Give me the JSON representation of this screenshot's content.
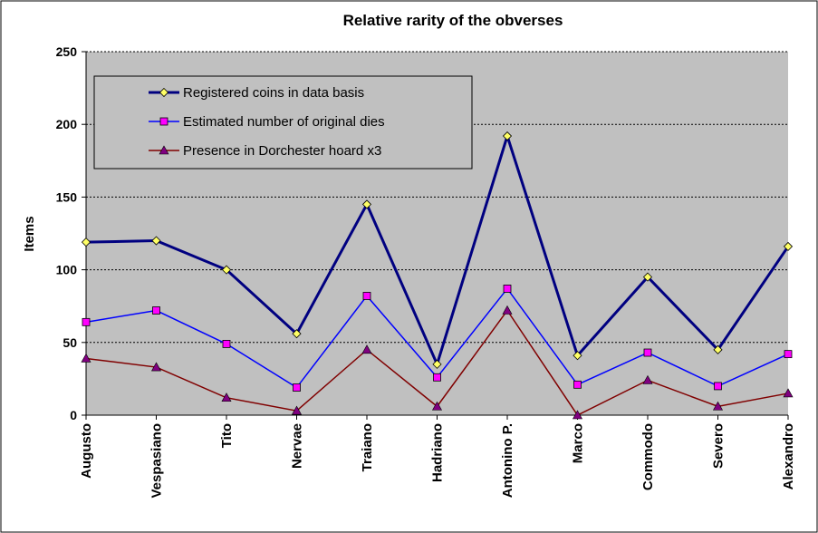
{
  "chart_data": {
    "type": "line",
    "title": "Relative rarity of the obverses",
    "xlabel": "",
    "ylabel": "Items",
    "ylim": [
      0,
      250
    ],
    "yticks": [
      0,
      50,
      100,
      150,
      200,
      250
    ],
    "grid": true,
    "legend_position": "top-left",
    "categories": [
      "Augusto",
      "Vespasiano",
      "Tito",
      "Nervae",
      "Traiano",
      "Hadriano",
      "Antonino P.",
      "Marco",
      "Commodo",
      "Severo",
      "Alexandro"
    ],
    "series": [
      {
        "name": "Registered coins in data basis",
        "color": "#000080",
        "marker": "diamond",
        "marker_color": "#FFFF66",
        "values": [
          119,
          120,
          100,
          56,
          145,
          35,
          192,
          41,
          95,
          45,
          116
        ]
      },
      {
        "name": "Estimated number of original dies",
        "color": "#0000FF",
        "marker": "square",
        "marker_color": "#FF00FF",
        "values": [
          64,
          72,
          49,
          19,
          82,
          26,
          87,
          21,
          43,
          20,
          42
        ]
      },
      {
        "name": "Presence in Dorchester hoard x3",
        "color": "#800000",
        "marker": "triangle",
        "marker_color": "#800080",
        "values": [
          39,
          33,
          12,
          3,
          45,
          6,
          72,
          0,
          24,
          6,
          15
        ]
      }
    ],
    "plot_background": "#C0C0C0"
  }
}
